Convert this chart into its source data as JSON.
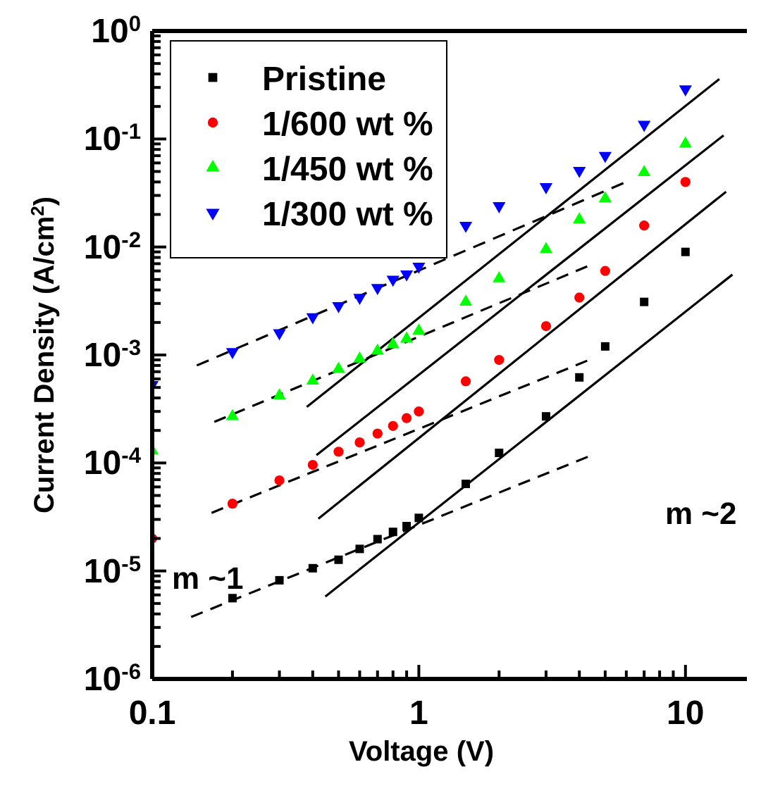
{
  "chart_data": {
    "type": "scatter",
    "xlabel": "Voltage (V)",
    "ylabel": "Current Density (A/cm$^{2}$)",
    "log": "xy",
    "legend": "top left",
    "xlim": [
      0.1,
      17
    ],
    "ylim": [
      1e-06,
      1
    ],
    "xticks": [
      {
        "value": 0.1,
        "label": "0.1"
      },
      {
        "value": 0.2,
        "label": null
      },
      {
        "value": 0.3,
        "label": null
      },
      {
        "value": 0.4,
        "label": null
      },
      {
        "value": 0.5,
        "label": null
      },
      {
        "value": 0.6,
        "label": null
      },
      {
        "value": 0.7,
        "label": null
      },
      {
        "value": 0.8,
        "label": null
      },
      {
        "value": 0.9,
        "label": null
      },
      {
        "value": 1,
        "label": "1"
      },
      {
        "value": 2,
        "label": null
      },
      {
        "value": 3,
        "label": null
      },
      {
        "value": 4,
        "label": null
      },
      {
        "value": 5,
        "label": null
      },
      {
        "value": 6,
        "label": null
      },
      {
        "value": 7,
        "label": null
      },
      {
        "value": 8,
        "label": null
      },
      {
        "value": 9,
        "label": null
      },
      {
        "value": 10,
        "label": "10"
      }
    ],
    "yticks": [
      {
        "value": 1e-06,
        "label": "10$^{-6}$"
      },
      {
        "value": 2e-06,
        "label": null
      },
      {
        "value": 3e-06,
        "label": null
      },
      {
        "value": 4e-06,
        "label": null
      },
      {
        "value": 5e-06,
        "label": null
      },
      {
        "value": 6e-06,
        "label": null
      },
      {
        "value": 7e-06,
        "label": null
      },
      {
        "value": 8e-06,
        "label": null
      },
      {
        "value": 9e-06,
        "label": null
      },
      {
        "value": 1e-05,
        "label": "10$^{-5}$"
      },
      {
        "value": 2e-05,
        "label": null
      },
      {
        "value": 3e-05,
        "label": null
      },
      {
        "value": 4e-05,
        "label": null
      },
      {
        "value": 5e-05,
        "label": null
      },
      {
        "value": 6e-05,
        "label": null
      },
      {
        "value": 7e-05,
        "label": null
      },
      {
        "value": 8e-05,
        "label": null
      },
      {
        "value": 9e-05,
        "label": null
      },
      {
        "value": 0.0001,
        "label": "10$^{-4}$"
      },
      {
        "value": 0.0002,
        "label": null
      },
      {
        "value": 0.0003,
        "label": null
      },
      {
        "value": 0.0004,
        "label": null
      },
      {
        "value": 0.0005,
        "label": null
      },
      {
        "value": 0.0006,
        "label": null
      },
      {
        "value": 0.0007,
        "label": null
      },
      {
        "value": 0.0008,
        "label": null
      },
      {
        "value": 0.0009,
        "label": null
      },
      {
        "value": 0.001,
        "label": "10$^{-3}$"
      },
      {
        "value": 0.002,
        "label": null
      },
      {
        "value": 0.003,
        "label": null
      },
      {
        "value": 0.004,
        "label": null
      },
      {
        "value": 0.005,
        "label": null
      },
      {
        "value": 0.006,
        "label": null
      },
      {
        "value": 0.007,
        "label": null
      },
      {
        "value": 0.008,
        "label": null
      },
      {
        "value": 0.009,
        "label": null
      },
      {
        "value": 0.01,
        "label": "10$^{-2}$"
      },
      {
        "value": 0.02,
        "label": null
      },
      {
        "value": 0.03,
        "label": null
      },
      {
        "value": 0.04,
        "label": null
      },
      {
        "value": 0.05,
        "label": null
      },
      {
        "value": 0.06,
        "label": null
      },
      {
        "value": 0.07,
        "label": null
      },
      {
        "value": 0.08,
        "label": null
      },
      {
        "value": 0.09,
        "label": null
      },
      {
        "value": 0.1,
        "label": "10$^{-1}$"
      },
      {
        "value": 0.2,
        "label": null
      },
      {
        "value": 0.3,
        "label": null
      },
      {
        "value": 0.4,
        "label": null
      },
      {
        "value": 0.5,
        "label": null
      },
      {
        "value": 0.6,
        "label": null
      },
      {
        "value": 0.7,
        "label": null
      },
      {
        "value": 0.8,
        "label": null
      },
      {
        "value": 0.9,
        "label": null
      },
      {
        "value": 1,
        "label": "10$^{0}$"
      }
    ],
    "x": [
      0.1,
      0.2,
      0.3,
      0.4,
      0.5,
      0.6,
      0.7,
      0.8,
      0.9,
      1,
      1.5,
      2,
      3,
      4,
      5,
      7,
      10
    ],
    "series": [
      {
        "name": "Pristine",
        "color": "#000000",
        "marker": "square",
        "values": [
          null,
          5.6e-06,
          8.2e-06,
          1.06e-05,
          1.27e-05,
          1.6e-05,
          1.97e-05,
          2.3e-05,
          2.6e-05,
          3.1e-05,
          6.4e-05,
          0.000124,
          0.00027,
          0.00062,
          0.0012,
          0.0031,
          0.009
        ]
      },
      {
        "name": "1/600 wt %",
        "color": "#ff0000",
        "marker": "circle",
        "values": [
          2e-05,
          4.2e-05,
          6.9e-05,
          9.6e-05,
          0.000127,
          0.000155,
          0.000187,
          0.00022,
          0.00026,
          0.0003,
          0.00057,
          0.0009,
          0.00185,
          0.0034,
          0.006,
          0.0158,
          0.04
        ]
      },
      {
        "name": "1/450 wt %",
        "color": "#00ff00",
        "marker": "triangle",
        "values": [
          0.00013,
          0.00027,
          0.00042,
          0.000575,
          0.00074,
          0.00092,
          0.00109,
          0.00125,
          0.00141,
          0.00167,
          0.0031,
          0.0051,
          0.0095,
          0.0179,
          0.028,
          0.049,
          0.09
        ]
      },
      {
        "name": "1/300 wt %",
        "color": "#0000ff",
        "marker": "triangle-down",
        "values": [
          0.00053,
          0.00107,
          0.0016,
          0.00225,
          0.00285,
          0.0034,
          0.0042,
          0.005,
          0.0056,
          0.0066,
          0.0158,
          0.024,
          0.036,
          0.051,
          0.07,
          0.136,
          0.29
        ]
      },
      {
        "type": "line",
        "color": "#000000",
        "line_style": "dashed",
        "x": [
          0.14,
          4.3
        ],
        "values": [
          3.75e-06,
          0.000114
        ]
      },
      {
        "type": "line",
        "color": "#000000",
        "line_style": "dashed",
        "x": [
          0.167,
          4.28
        ],
        "values": [
          3.45e-05,
          0.000885
        ]
      },
      {
        "type": "line",
        "color": "#000000",
        "line_style": "dashed",
        "x": [
          0.171,
          4.28
        ],
        "values": [
          0.00024,
          0.0066
        ]
      },
      {
        "type": "line",
        "color": "#000000",
        "line_style": "dashed",
        "x": [
          0.147,
          5.85
        ],
        "values": [
          0.0008,
          0.039
        ]
      },
      {
        "type": "line",
        "color": "#000000",
        "line_style": "solid",
        "x": [
          0.446,
          15
        ],
        "values": [
          5.8e-06,
          0.00555
        ]
      },
      {
        "type": "line",
        "color": "#000000",
        "line_style": "solid",
        "x": [
          0.42,
          14.2
        ],
        "values": [
          3.05e-05,
          0.0325
        ]
      },
      {
        "type": "line",
        "color": "#000000",
        "line_style": "solid",
        "x": [
          0.413,
          13.9
        ],
        "values": [
          0.000118,
          0.108
        ]
      },
      {
        "type": "line",
        "color": "#000000",
        "line_style": "solid",
        "x": [
          0.38,
          13.4
        ],
        "values": [
          0.00033,
          0.359
        ]
      }
    ],
    "annotations": [
      "m ~1",
      "m ~2"
    ]
  }
}
